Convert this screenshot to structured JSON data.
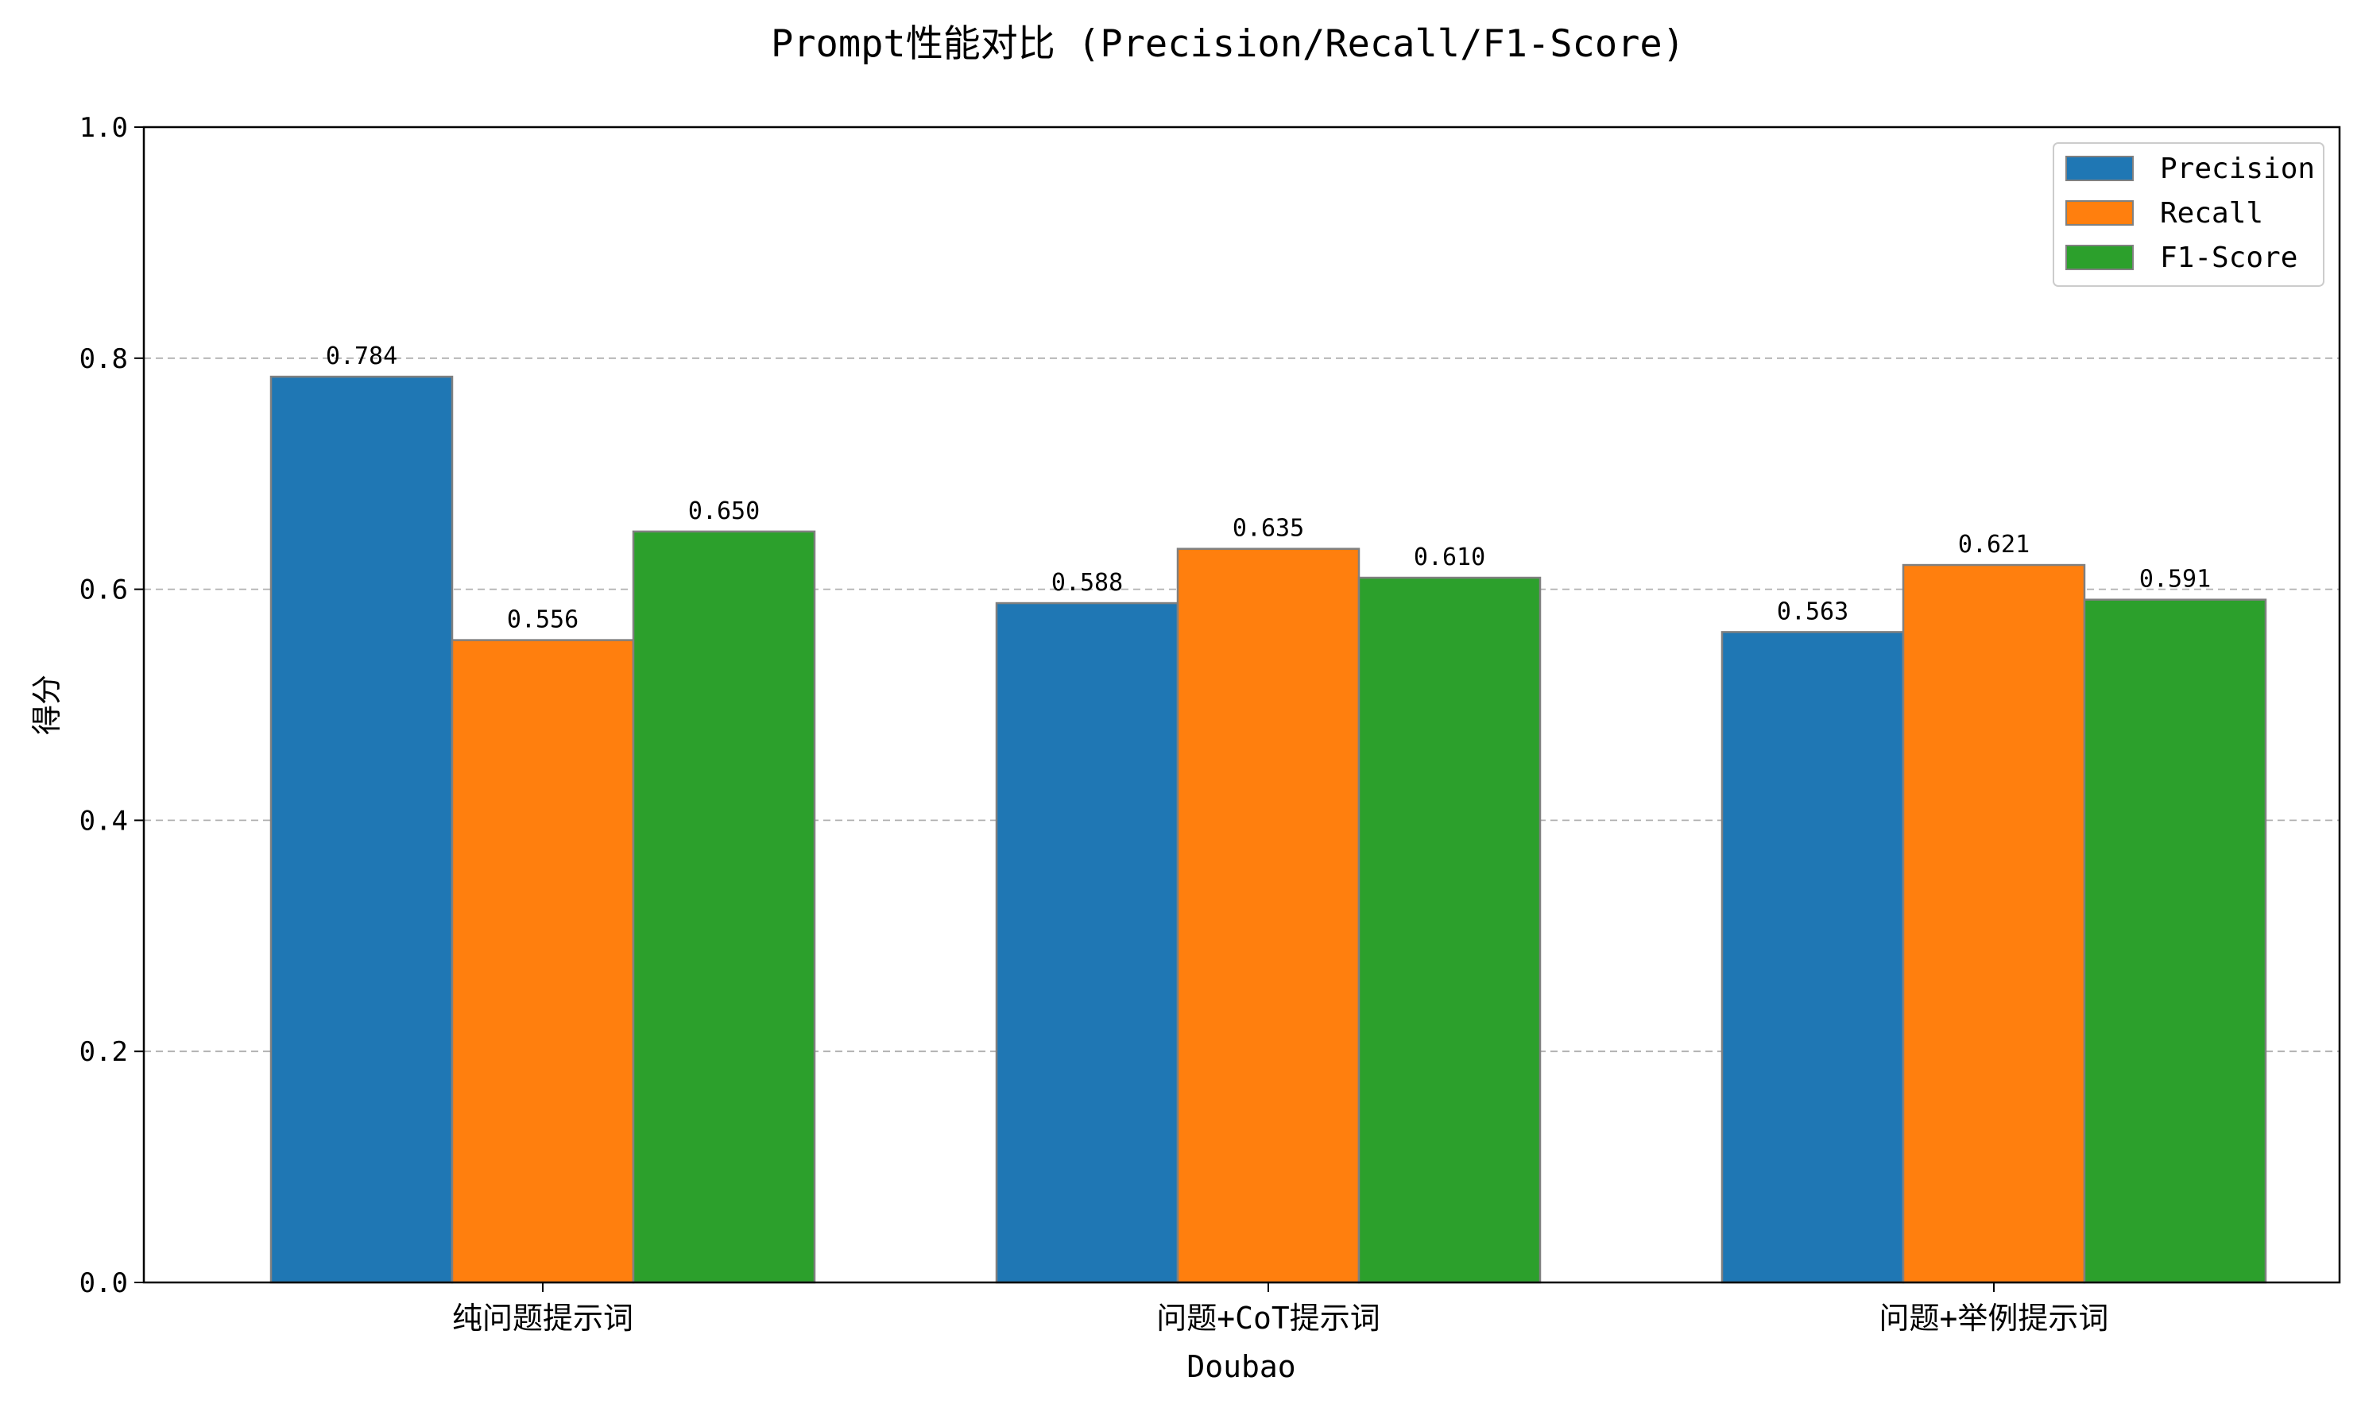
{
  "chart_data": {
    "type": "bar",
    "title": "Prompt性能对比 (Precision/Recall/F1-Score)",
    "xlabel": "Doubao",
    "ylabel": "得分",
    "ylim": [
      0,
      1.0
    ],
    "yticks": [
      "0.0",
      "0.2",
      "0.4",
      "0.6",
      "0.8",
      "1.0"
    ],
    "grid": "y dashed",
    "legend_position": "top-right",
    "categories": [
      "纯问题提示词",
      "问题+CoT提示词",
      "问题+举例提示词"
    ],
    "series": [
      {
        "name": "Precision",
        "color": "#1f77b4",
        "values": [
          0.784,
          0.588,
          0.563
        ],
        "labels": [
          "0.784",
          "0.588",
          "0.563"
        ]
      },
      {
        "name": "Recall",
        "color": "#ff7f0e",
        "values": [
          0.556,
          0.635,
          0.621
        ],
        "labels": [
          "0.556",
          "0.635",
          "0.621"
        ]
      },
      {
        "name": "F1-Score",
        "color": "#2ca02c",
        "values": [
          0.65,
          0.61,
          0.591
        ],
        "labels": [
          "0.650",
          "0.610",
          "0.591"
        ]
      }
    ]
  }
}
